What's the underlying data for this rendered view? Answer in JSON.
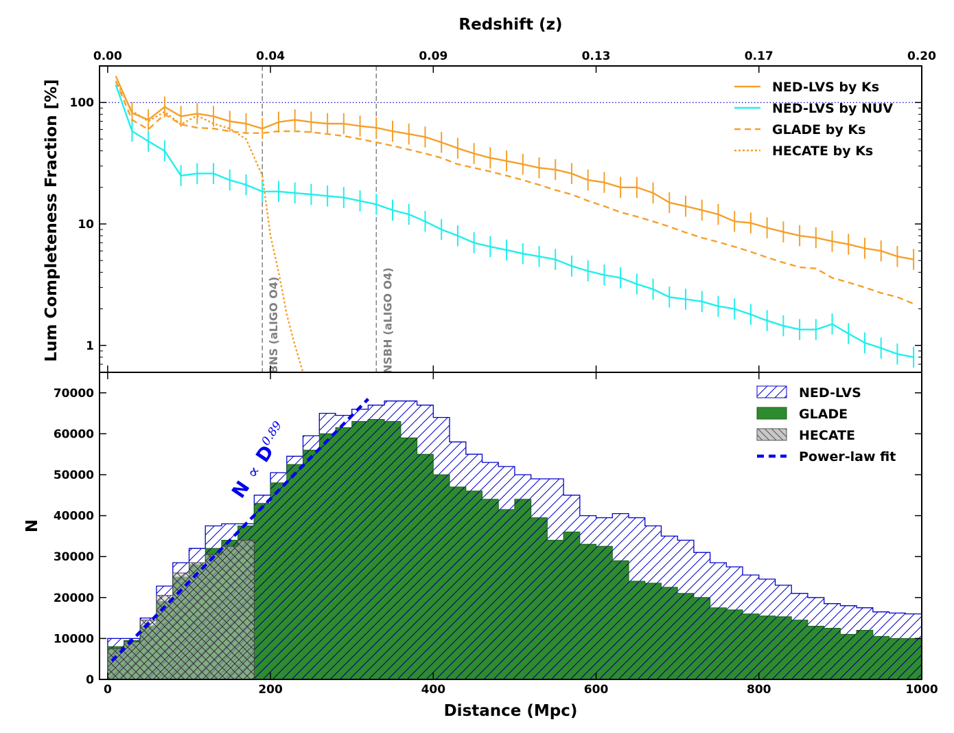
{
  "chart_data": [
    {
      "type": "line",
      "top_xlabel": "Redshift (z)",
      "top_xticks": [
        "0.00",
        "0.04",
        "0.09",
        "0.13",
        "0.17",
        "0.20"
      ],
      "ylabel": "Lum Completeness Fraction [%]",
      "yscale": "log",
      "ylim": [
        0.6,
        200
      ],
      "yticks": [
        "1",
        "10",
        "100"
      ],
      "xlim": [
        -10,
        1000
      ],
      "reference_line": {
        "y": 100,
        "style": "dotted",
        "color": "#0000cc"
      },
      "vlines": [
        {
          "x": 190,
          "label": "BNS (aLIGO O4)"
        },
        {
          "x": 330,
          "label": "NSBH (aLIGO O4)"
        }
      ],
      "legend_position": "top-right",
      "x": [
        10,
        30,
        50,
        70,
        90,
        110,
        130,
        150,
        170,
        190,
        210,
        230,
        250,
        270,
        290,
        310,
        330,
        350,
        370,
        390,
        410,
        430,
        450,
        470,
        490,
        510,
        530,
        550,
        570,
        590,
        610,
        630,
        650,
        670,
        690,
        710,
        730,
        750,
        770,
        790,
        810,
        830,
        850,
        870,
        890,
        910,
        930,
        950,
        970,
        990
      ],
      "series": [
        {
          "name": "NED-LVS by Ks",
          "color": "#f5a02a",
          "style": "solid",
          "errorbars": true,
          "values": [
            165,
            82,
            72,
            92,
            77,
            81,
            77,
            70,
            67,
            61,
            69,
            72,
            69,
            67,
            67,
            64,
            62,
            58,
            55,
            52,
            47,
            42,
            38,
            35,
            33,
            31,
            29,
            28,
            26,
            23,
            22,
            20,
            20,
            18,
            15,
            14,
            13,
            12,
            10.5,
            10.2,
            9.3,
            8.6,
            8.0,
            7.7,
            7.2,
            6.8,
            6.3,
            6.0,
            5.4,
            5.1
          ]
        },
        {
          "name": "NED-LVS by NUV",
          "color": "#22eeee",
          "style": "solid",
          "errorbars": true,
          "values": [
            140,
            58,
            48,
            40,
            25,
            26,
            26,
            23,
            21,
            18.5,
            18.5,
            18,
            17.5,
            17,
            16.5,
            15.5,
            14.5,
            13,
            12,
            10.5,
            9,
            8,
            7,
            6.5,
            6.1,
            5.7,
            5.4,
            5.1,
            4.5,
            4.1,
            3.8,
            3.6,
            3.2,
            2.9,
            2.5,
            2.4,
            2.3,
            2.1,
            2.0,
            1.8,
            1.6,
            1.45,
            1.35,
            1.35,
            1.5,
            1.25,
            1.05,
            0.95,
            0.85,
            0.8
          ]
        },
        {
          "name": "GLADE by Ks",
          "color": "#f5a02a",
          "style": "dashed",
          "errorbars": false,
          "values": [
            150,
            72,
            60,
            80,
            66,
            62,
            61,
            58,
            56,
            56,
            58,
            58,
            57,
            55,
            53,
            50,
            47,
            44,
            41,
            38,
            35,
            31,
            29,
            27,
            25,
            23,
            21,
            19,
            17.5,
            15.5,
            14,
            12.5,
            11.5,
            10.5,
            9.5,
            8.5,
            7.7,
            7.1,
            6.5,
            5.9,
            5.3,
            4.8,
            4.4,
            4.3,
            3.6,
            3.3,
            3.0,
            2.7,
            2.5,
            2.2
          ]
        },
        {
          "name": "HECATE by Ks",
          "color": "#f5a02a",
          "style": "dotted",
          "errorbars": false,
          "x": [
            10,
            30,
            50,
            70,
            90,
            110,
            130,
            150,
            170,
            190,
            200,
            210,
            220,
            230,
            240
          ],
          "values": [
            150,
            85,
            70,
            84,
            66,
            78,
            67,
            61,
            50,
            25,
            8,
            4,
            1.8,
            1.0,
            0.6
          ]
        }
      ]
    },
    {
      "type": "bar",
      "xlabel": "Distance (Mpc)",
      "ylabel": "N",
      "xlim": [
        -10,
        1000
      ],
      "ylim": [
        0,
        75000
      ],
      "xticks": [
        "0",
        "200",
        "400",
        "600",
        "800",
        "1000"
      ],
      "yticks": [
        "0",
        "10000",
        "20000",
        "30000",
        "40000",
        "50000",
        "60000",
        "70000"
      ],
      "bin_width": 20,
      "bin_start": 0,
      "legend_position": "top-right",
      "annotation": {
        "text": "N",
        "math": "∝",
        "base": "D",
        "exponent": "0.89"
      },
      "series": [
        {
          "name": "NED-LVS",
          "style": "hatched-outline",
          "color": "#0000cc",
          "values": [
            10000,
            10000,
            15000,
            22800,
            28500,
            32000,
            37500,
            38000,
            38000,
            45000,
            50500,
            54500,
            59500,
            65000,
            64500,
            66000,
            67000,
            68000,
            68000,
            67000,
            64000,
            58000,
            55000,
            53000,
            52000,
            50000,
            49000,
            49000,
            45000,
            40000,
            39500,
            40500,
            39500,
            37500,
            35000,
            34000,
            31000,
            28500,
            27500,
            25500,
            24500,
            23000,
            21000,
            20000,
            18500,
            18000,
            17500,
            16500,
            16200,
            16000
          ]
        },
        {
          "name": "GLADE",
          "style": "filled",
          "color": "#2e8b2e",
          "values": [
            8000,
            9500,
            13000,
            19000,
            25000,
            28000,
            32000,
            34000,
            37500,
            43000,
            48000,
            52500,
            56000,
            60000,
            61500,
            63000,
            63500,
            63000,
            59000,
            55000,
            50000,
            47000,
            46000,
            44000,
            41500,
            44000,
            39500,
            34000,
            36000,
            33000,
            32500,
            29000,
            24000,
            23500,
            22500,
            21000,
            20000,
            17500,
            17000,
            16000,
            15500,
            15300,
            14500,
            13000,
            12500,
            11000,
            12000,
            10500,
            10000,
            10000
          ]
        },
        {
          "name": "HECATE",
          "style": "crosshatched-gray",
          "color": "#c8c8c8",
          "values": [
            7500,
            9200,
            14500,
            20500,
            26000,
            28500,
            30500,
            32500,
            34000
          ]
        },
        {
          "name": "Power-law fit",
          "style": "dashed-line",
          "color": "#0000ee",
          "fit": {
            "x": [
              5,
              320
            ],
            "y": [
              4500,
              68500
            ]
          }
        }
      ]
    }
  ]
}
